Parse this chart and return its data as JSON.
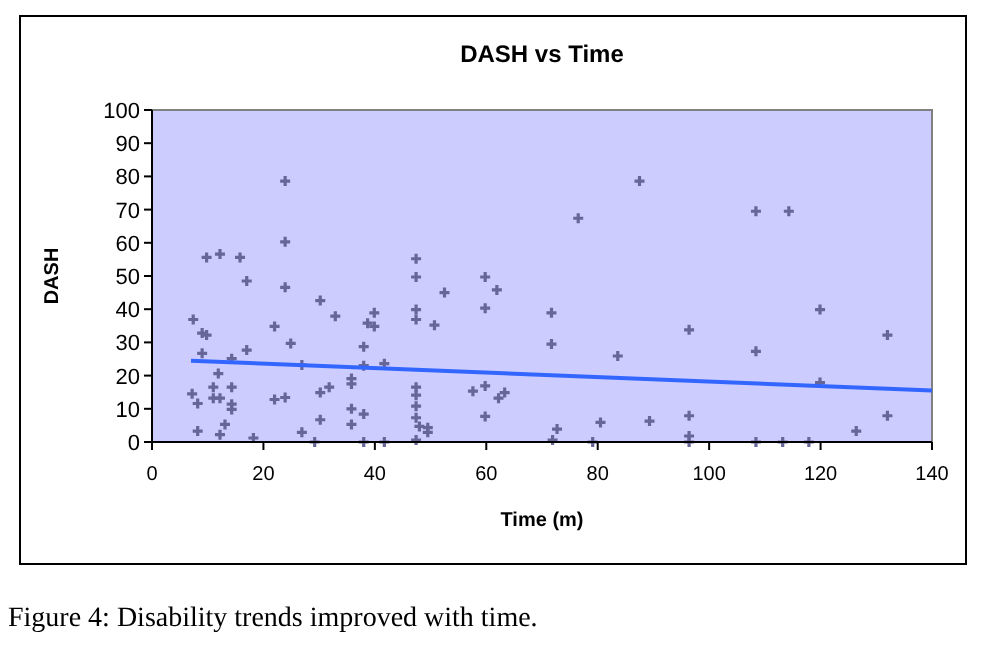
{
  "chart_data": {
    "type": "scatter",
    "title": "DASH vs Time",
    "xlabel": "Time (m)",
    "ylabel": "DASH",
    "annotations": [
      "Figure 4: Disability trends improved with time."
    ],
    "xlim": [
      0,
      140
    ],
    "xticks": [
      0,
      20,
      40,
      60,
      80,
      100,
      120,
      140
    ],
    "ylim": [
      0,
      100
    ],
    "yticks": [
      0,
      10,
      20,
      30,
      40,
      50,
      60,
      70,
      80,
      90,
      100
    ],
    "grid": false,
    "series": [
      {
        "color": "#666699",
        "marker": "cross",
        "x": [
          7.4,
          9.8,
          9.0,
          9.8,
          9.0,
          7.2,
          8.2,
          8.2,
          12.2,
          15.8,
          17.0,
          17.0,
          14.3,
          11.9,
          11.0,
          14.3,
          11.0,
          12.2,
          14.3,
          14.3,
          13.1,
          12.2,
          18.2,
          23.9,
          23.9,
          23.9,
          22.0,
          24.9,
          22.0,
          23.9,
          26.9,
          26.9,
          29.2,
          30.2,
          32.9,
          30.2,
          31.8,
          30.2,
          35.8,
          35.8,
          35.8,
          35.8,
          38.0,
          38.0,
          38.0,
          38.7,
          39.9,
          39.9,
          38.0,
          41.7,
          41.7,
          47.4,
          47.4,
          47.4,
          47.4,
          50.7,
          52.5,
          47.4,
          47.4,
          47.4,
          47.4,
          48.0,
          49.5,
          49.5,
          47.4,
          57.6,
          59.8,
          59.8,
          59.8,
          61.9,
          63.3,
          62.2,
          59.8,
          71.7,
          71.7,
          72.7,
          71.9,
          76.5,
          79.1,
          80.5,
          83.6,
          87.5,
          89.3,
          96.4,
          96.4,
          96.4,
          96.4,
          108.4,
          114.3,
          108.4,
          119.9,
          119.9,
          108.4,
          113.2,
          117.9,
          126.4,
          132.0,
          132.0
        ],
        "values": [
          36.9,
          55.6,
          32.8,
          32.2,
          26.7,
          14.5,
          11.6,
          3.3,
          56.6,
          55.6,
          48.5,
          27.7,
          25.1,
          20.6,
          16.5,
          16.5,
          13.2,
          13.2,
          11.4,
          9.8,
          5.3,
          2.2,
          1.2,
          78.6,
          60.3,
          46.6,
          34.8,
          29.7,
          12.8,
          13.4,
          23.2,
          2.9,
          0,
          42.6,
          37.9,
          14.9,
          16.5,
          6.7,
          17.5,
          19.1,
          10.0,
          5.3,
          28.7,
          23.0,
          8.4,
          35.8,
          38.9,
          34.8,
          0,
          0,
          23.6,
          55.2,
          49.7,
          39.9,
          36.9,
          35.2,
          45.0,
          16.5,
          14.1,
          10.8,
          7.3,
          4.7,
          4.3,
          2.9,
          0.6,
          15.3,
          16.9,
          49.7,
          40.3,
          45.8,
          14.9,
          13.2,
          7.7,
          38.9,
          29.5,
          3.9,
          0.6,
          67.4,
          0,
          5.9,
          25.9,
          78.6,
          6.3,
          33.8,
          7.9,
          1.8,
          0,
          69.5,
          69.5,
          27.3,
          39.9,
          17.9,
          0,
          0,
          0,
          3.3,
          32.2,
          7.9
        ]
      },
      {
        "type": "line",
        "color": "#3366ff",
        "x": [
          7,
          140
        ],
        "values": [
          24.5,
          15.5
        ],
        "marker": "none"
      }
    ]
  }
}
